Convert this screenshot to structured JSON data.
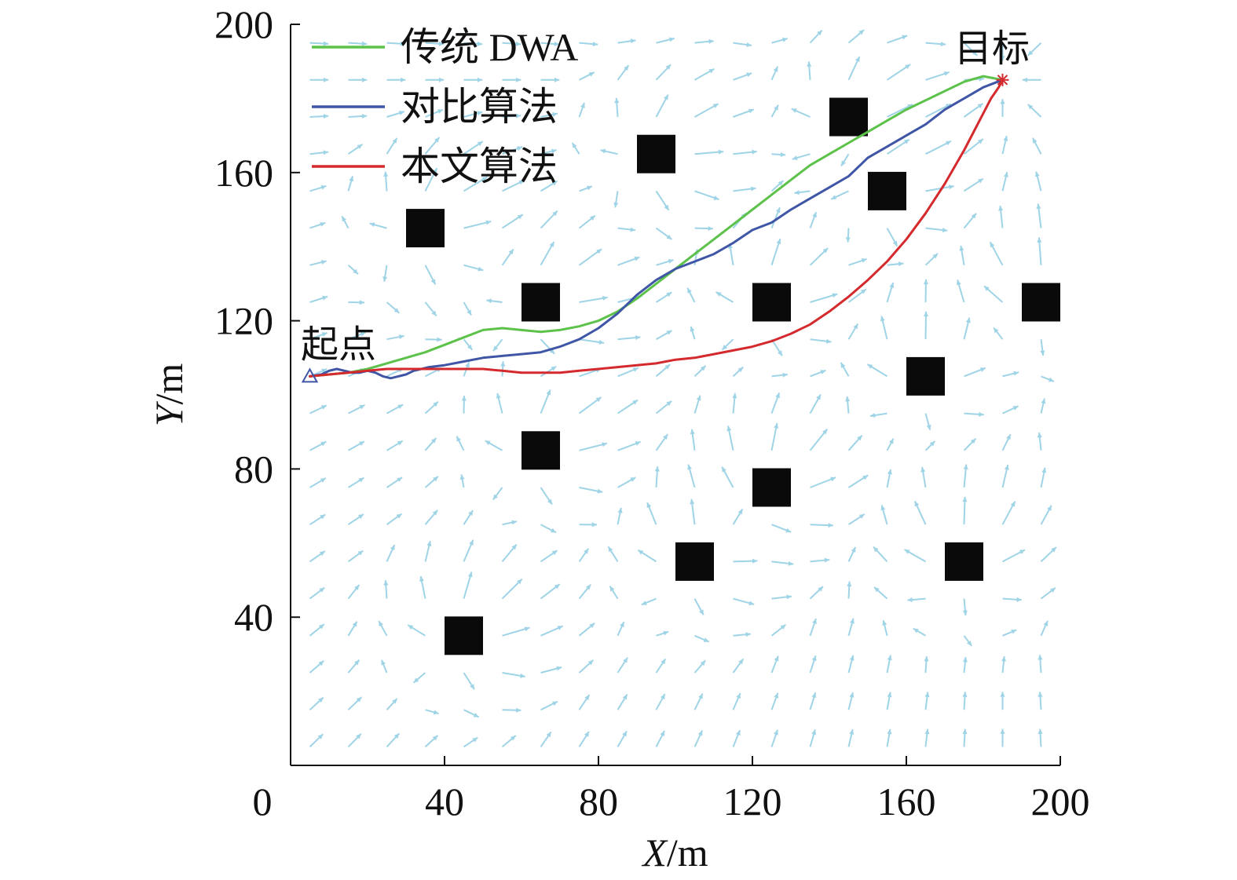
{
  "chart_data": {
    "type": "line",
    "title": "",
    "xlabel": {
      "var": "X",
      "unit": "/m"
    },
    "ylabel": {
      "var": "Y",
      "unit": "/m"
    },
    "xlim": [
      0,
      200
    ],
    "ylim": [
      0,
      200
    ],
    "xticks": [
      "0",
      "40",
      "80",
      "120",
      "160",
      "200"
    ],
    "yticks": [
      "40",
      "80",
      "120",
      "160",
      "200"
    ],
    "xtick_values": [
      0,
      40,
      80,
      120,
      160,
      200
    ],
    "ytick_values": [
      40,
      80,
      120,
      160,
      200
    ],
    "grid": false,
    "legend_position": "top-left",
    "series": [
      {
        "name": "传统 DWA",
        "color": "#5cc24a",
        "x": [
          5,
          10,
          15,
          20,
          25,
          30,
          35,
          40,
          45,
          50,
          55,
          60,
          65,
          70,
          75,
          80,
          85,
          90,
          95,
          100,
          105,
          110,
          115,
          120,
          125,
          130,
          135,
          140,
          145,
          150,
          155,
          160,
          165,
          170,
          175,
          180,
          185
        ],
        "y": [
          105,
          105.5,
          106,
          107,
          108.5,
          110,
          111.5,
          113.5,
          115.5,
          117.5,
          118,
          117.5,
          117,
          117.5,
          118.5,
          120,
          122.5,
          126,
          130,
          134,
          138,
          142,
          146,
          150,
          154,
          158,
          162,
          165,
          168,
          171,
          174,
          177,
          179.5,
          182,
          184.5,
          186,
          185
        ]
      },
      {
        "name": "对比算法",
        "color": "#3f56a6",
        "x": [
          5,
          8,
          10,
          12,
          14,
          16,
          18,
          20,
          22,
          24,
          26,
          28,
          30,
          32,
          34,
          36,
          40,
          45,
          50,
          55,
          60,
          65,
          70,
          75,
          80,
          85,
          90,
          95,
          100,
          105,
          110,
          115,
          120,
          125,
          130,
          135,
          140,
          145,
          148,
          150,
          155,
          160,
          165,
          170,
          175,
          180,
          185
        ],
        "y": [
          105,
          105.5,
          106.5,
          107,
          106.5,
          106,
          106,
          106.5,
          106,
          105,
          104.5,
          105,
          105.5,
          106.5,
          107,
          107.5,
          108,
          109,
          110,
          110.5,
          111,
          111.5,
          113,
          115,
          118,
          122,
          127,
          131,
          134,
          136,
          138,
          141,
          144.5,
          146.5,
          150,
          153,
          156,
          159,
          162,
          164,
          167,
          170,
          173,
          177,
          180,
          183,
          185
        ]
      },
      {
        "name": "本文算法",
        "color": "#d42a2e",
        "x": [
          5,
          10,
          15,
          20,
          25,
          30,
          35,
          40,
          45,
          50,
          55,
          60,
          65,
          70,
          75,
          80,
          85,
          90,
          95,
          100,
          105,
          110,
          115,
          120,
          125,
          130,
          135,
          140,
          145,
          150,
          155,
          160,
          165,
          170,
          175,
          180,
          182,
          184,
          185
        ],
        "y": [
          105,
          105.5,
          106,
          106.5,
          107,
          107,
          107,
          107,
          107,
          107,
          106.5,
          106,
          106,
          106,
          106.5,
          107,
          107.5,
          108,
          108.5,
          109.5,
          110,
          111,
          112,
          113,
          114.5,
          116.5,
          119,
          122.5,
          126.5,
          131,
          136,
          142,
          149,
          157,
          166,
          176,
          180,
          183,
          185
        ]
      }
    ],
    "obstacles": [
      {
        "x": 35,
        "y": 145
      },
      {
        "x": 95,
        "y": 165
      },
      {
        "x": 145,
        "y": 175
      },
      {
        "x": 155,
        "y": 155
      },
      {
        "x": 65,
        "y": 125
      },
      {
        "x": 125,
        "y": 125
      },
      {
        "x": 195,
        "y": 125
      },
      {
        "x": 165,
        "y": 105
      },
      {
        "x": 65,
        "y": 85
      },
      {
        "x": 125,
        "y": 75
      },
      {
        "x": 105,
        "y": 55
      },
      {
        "x": 175,
        "y": 55
      },
      {
        "x": 45,
        "y": 35
      }
    ],
    "annotations": {
      "start": {
        "label": "起点",
        "x": 5,
        "y": 105
      },
      "goal": {
        "label": "目标",
        "x": 185,
        "y": 185
      }
    }
  }
}
